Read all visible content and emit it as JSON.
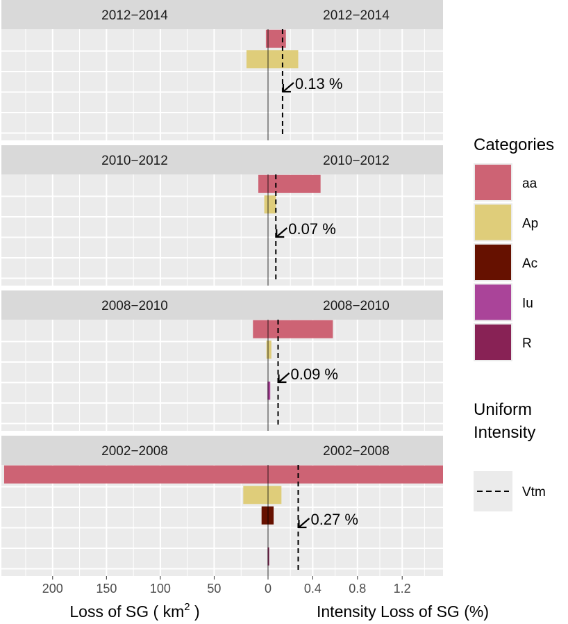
{
  "chart_data": {
    "type": "bar",
    "layout": "back-to-back horizontal bars, faceted by period",
    "categories": [
      "aa",
      "Ap",
      "Ac",
      "Iu",
      "R"
    ],
    "colors": {
      "aa": "#cd6374",
      "Ap": "#dfcd7a",
      "Ac": "#661100",
      "Iu": "#aa4499",
      "R": "#882255",
      "panel_bg": "#ebebeb",
      "strip_bg": "#d9d9d9",
      "grid": "#ffffff"
    },
    "left_axis": {
      "label_prefix": "Loss of SG ( km",
      "label_sup": "2",
      "label_suffix": " )",
      "ticks": [
        200,
        150,
        100,
        50,
        0
      ],
      "range": [
        250,
        0
      ]
    },
    "right_axis": {
      "label": "Intensity Loss of SG (%)",
      "ticks": [
        "0.4",
        "0.8",
        "1.2"
      ],
      "tick_values": [
        0.4,
        0.8,
        1.2
      ],
      "range": [
        0,
        1.57
      ]
    },
    "facets": [
      {
        "title": "2012−2014",
        "uniform_intensity": 0.13,
        "annotation": "0.13 %",
        "loss_km2": {
          "aa": 2,
          "Ap": 20,
          "Ac": 0,
          "Iu": 0,
          "R": 0
        },
        "intensity_pct": {
          "aa": 0.16,
          "Ap": 0.27,
          "Ac": 0,
          "Iu": 0,
          "R": 0
        }
      },
      {
        "title": "2010−2012",
        "uniform_intensity": 0.07,
        "annotation": "0.07 %",
        "loss_km2": {
          "aa": 9,
          "Ap": 3.5,
          "Ac": 0,
          "Iu": 0,
          "R": 0
        },
        "intensity_pct": {
          "aa": 0.47,
          "Ap": 0.07,
          "Ac": 0,
          "Iu": 0,
          "R": 0
        }
      },
      {
        "title": "2008−2010",
        "uniform_intensity": 0.09,
        "annotation": "0.09 %",
        "loss_km2": {
          "aa": 14,
          "Ap": 1.5,
          "Ac": 0,
          "Iu": 0.5,
          "R": 0
        },
        "intensity_pct": {
          "aa": 0.58,
          "Ap": 0.03,
          "Ac": 0,
          "Iu": 0.02,
          "R": 0
        }
      },
      {
        "title": "2002−2008",
        "uniform_intensity": 0.27,
        "annotation": "0.27 %",
        "loss_km2": {
          "aa": 245,
          "Ap": 23,
          "Ac": 6,
          "Iu": 0,
          "R": 0.4
        },
        "intensity_pct": {
          "aa": 1.57,
          "Ap": 0.12,
          "Ac": 0.05,
          "Iu": 0,
          "R": 0.01
        }
      }
    ],
    "legend": {
      "categories_title": "Categories",
      "items": [
        "aa",
        "Ap",
        "Ac",
        "Iu",
        "R"
      ],
      "uniform_title_line1": "Uniform",
      "uniform_title_line2": "Intensity",
      "uniform_label": "Vtm",
      "placement": "right"
    },
    "grid": true
  }
}
